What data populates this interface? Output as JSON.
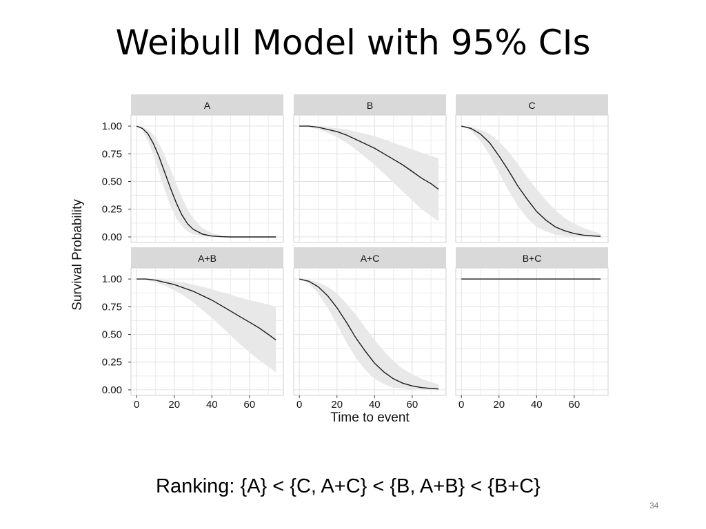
{
  "slide": {
    "title": "Weibull Model with 95% CIs",
    "ranking": "Ranking:  {A} < {C, A+C} < {B, A+B} < {B+C}",
    "page_number": "34"
  },
  "chart_data": {
    "type": "line",
    "layout": "facet-grid 2x3",
    "xlabel": "Time to event",
    "ylabel": "Survival Probability",
    "xlim": [
      -3,
      78
    ],
    "ylim": [
      -0.05,
      1.1
    ],
    "x_ticks": [
      0,
      20,
      40,
      60
    ],
    "y_ticks": [
      "0.00",
      "0.25",
      "0.50",
      "0.75",
      "1.00"
    ],
    "grid": true,
    "colors": {
      "panel_bg": "#ffffff",
      "grid": "#e4e4e4",
      "strip_bg": "#d9d9d9",
      "band": "#e8e8e8",
      "line": "#1a1a1a"
    },
    "panels": [
      {
        "label": "A",
        "x": [
          0,
          3,
          6,
          9,
          12,
          15,
          18,
          21,
          24,
          27,
          30,
          35,
          40,
          45,
          50,
          55,
          60,
          65,
          70,
          74
        ],
        "estimate": [
          1.0,
          0.98,
          0.93,
          0.84,
          0.72,
          0.58,
          0.44,
          0.31,
          0.2,
          0.12,
          0.07,
          0.025,
          0.008,
          0.002,
          0.0,
          0.0,
          0.0,
          0.0,
          0.0,
          0.0
        ],
        "lower": [
          1.0,
          0.96,
          0.87,
          0.74,
          0.58,
          0.42,
          0.28,
          0.17,
          0.1,
          0.05,
          0.025,
          0.006,
          0.001,
          0.0,
          0.0,
          0.0,
          0.0,
          0.0,
          0.0,
          0.0
        ],
        "upper": [
          1.0,
          0.99,
          0.97,
          0.92,
          0.84,
          0.73,
          0.61,
          0.48,
          0.36,
          0.25,
          0.17,
          0.08,
          0.035,
          0.012,
          0.004,
          0.001,
          0.0,
          0.0,
          0.0,
          0.0
        ]
      },
      {
        "label": "B",
        "x": [
          0,
          5,
          10,
          15,
          20,
          25,
          30,
          35,
          40,
          45,
          50,
          55,
          60,
          65,
          70,
          74
        ],
        "estimate": [
          1.0,
          1.0,
          0.99,
          0.97,
          0.95,
          0.92,
          0.88,
          0.84,
          0.8,
          0.75,
          0.7,
          0.65,
          0.59,
          0.53,
          0.48,
          0.43
        ],
        "lower": [
          1.0,
          0.99,
          0.97,
          0.94,
          0.9,
          0.85,
          0.79,
          0.72,
          0.65,
          0.57,
          0.49,
          0.41,
          0.33,
          0.25,
          0.19,
          0.14
        ],
        "upper": [
          1.0,
          1.0,
          1.0,
          0.99,
          0.98,
          0.97,
          0.95,
          0.93,
          0.91,
          0.88,
          0.85,
          0.82,
          0.79,
          0.76,
          0.73,
          0.71
        ]
      },
      {
        "label": "C",
        "x": [
          0,
          5,
          10,
          15,
          20,
          25,
          30,
          35,
          40,
          45,
          50,
          55,
          60,
          65,
          70,
          74
        ],
        "estimate": [
          1.0,
          0.98,
          0.93,
          0.85,
          0.73,
          0.6,
          0.46,
          0.34,
          0.23,
          0.15,
          0.09,
          0.055,
          0.03,
          0.016,
          0.009,
          0.005
        ],
        "lower": [
          1.0,
          0.96,
          0.87,
          0.74,
          0.58,
          0.42,
          0.28,
          0.17,
          0.09,
          0.05,
          0.02,
          0.01,
          0.0,
          0.0,
          0.0,
          0.0
        ],
        "upper": [
          1.0,
          0.99,
          0.97,
          0.93,
          0.86,
          0.77,
          0.66,
          0.54,
          0.43,
          0.33,
          0.24,
          0.17,
          0.12,
          0.08,
          0.05,
          0.03
        ]
      },
      {
        "label": "A+B",
        "x": [
          0,
          5,
          10,
          15,
          20,
          25,
          30,
          35,
          40,
          45,
          50,
          55,
          60,
          65,
          70,
          74
        ],
        "estimate": [
          1.0,
          1.0,
          0.99,
          0.97,
          0.95,
          0.92,
          0.89,
          0.85,
          0.81,
          0.76,
          0.71,
          0.66,
          0.61,
          0.56,
          0.5,
          0.45
        ],
        "lower": [
          1.0,
          0.99,
          0.97,
          0.94,
          0.9,
          0.85,
          0.79,
          0.72,
          0.65,
          0.57,
          0.49,
          0.41,
          0.34,
          0.27,
          0.21,
          0.16
        ],
        "upper": [
          1.0,
          1.0,
          1.0,
          0.99,
          0.98,
          0.97,
          0.95,
          0.93,
          0.91,
          0.88,
          0.86,
          0.83,
          0.81,
          0.79,
          0.77,
          0.75
        ]
      },
      {
        "label": "A+C",
        "x": [
          0,
          5,
          10,
          15,
          20,
          25,
          30,
          35,
          40,
          45,
          50,
          55,
          60,
          65,
          70,
          74
        ],
        "estimate": [
          1.0,
          0.98,
          0.93,
          0.85,
          0.74,
          0.61,
          0.47,
          0.35,
          0.24,
          0.16,
          0.1,
          0.06,
          0.035,
          0.02,
          0.012,
          0.008
        ],
        "lower": [
          1.0,
          0.96,
          0.87,
          0.74,
          0.59,
          0.43,
          0.29,
          0.18,
          0.1,
          0.05,
          0.02,
          0.01,
          0.0,
          0.0,
          0.0,
          0.0
        ],
        "upper": [
          1.0,
          0.99,
          0.97,
          0.93,
          0.87,
          0.78,
          0.68,
          0.56,
          0.45,
          0.35,
          0.26,
          0.19,
          0.14,
          0.1,
          0.07,
          0.05
        ]
      },
      {
        "label": "B+C",
        "x": [
          0,
          74
        ],
        "estimate": [
          1.0,
          1.0
        ],
        "lower": [
          1.0,
          1.0
        ],
        "upper": [
          1.0,
          1.0
        ]
      }
    ]
  }
}
